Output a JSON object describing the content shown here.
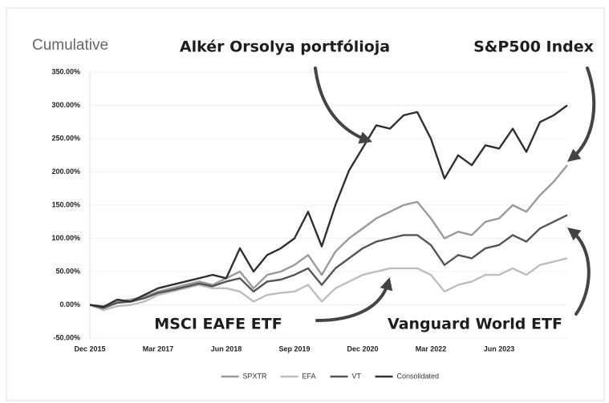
{
  "chart_data": {
    "type": "line",
    "title": "Cumulative",
    "categories": [
      "Dec 2015",
      null,
      null,
      null,
      null,
      "Mar 2017",
      null,
      null,
      null,
      null,
      "Jun 2018",
      null,
      null,
      null,
      null,
      "Sep 2019",
      null,
      null,
      null,
      null,
      "Dec 2020",
      null,
      null,
      null,
      null,
      "Mar 2022",
      null,
      null,
      null,
      null,
      "Jun 2023",
      null,
      null,
      null,
      null,
      null
    ],
    "series": [
      {
        "name": "SPXTR",
        "color": "#9a9a9a",
        "values": [
          0,
          -2,
          5,
          8,
          12,
          20,
          25,
          30,
          35,
          30,
          40,
          50,
          25,
          45,
          50,
          60,
          75,
          45,
          80,
          100,
          115,
          130,
          140,
          150,
          155,
          130,
          100,
          110,
          105,
          125,
          130,
          150,
          140,
          165,
          185,
          210
        ]
      },
      {
        "name": "EFA",
        "color": "#bdbdbd",
        "values": [
          0,
          -8,
          -2,
          0,
          5,
          15,
          20,
          25,
          30,
          25,
          25,
          20,
          5,
          15,
          18,
          20,
          30,
          5,
          25,
          35,
          45,
          50,
          55,
          55,
          55,
          45,
          20,
          30,
          35,
          45,
          45,
          55,
          45,
          60,
          65,
          70
        ]
      },
      {
        "name": "VT",
        "color": "#555555",
        "values": [
          0,
          -5,
          3,
          5,
          10,
          18,
          22,
          27,
          32,
          28,
          35,
          40,
          20,
          35,
          38,
          45,
          55,
          30,
          55,
          70,
          85,
          95,
          100,
          105,
          105,
          90,
          60,
          75,
          70,
          85,
          90,
          105,
          95,
          115,
          125,
          135
        ]
      },
      {
        "name": "Consolidated",
        "color": "#303030",
        "values": [
          0,
          -3,
          8,
          5,
          15,
          25,
          30,
          35,
          40,
          45,
          40,
          85,
          50,
          75,
          85,
          100,
          140,
          88,
          150,
          202,
          236,
          270,
          265,
          285,
          290,
          250,
          190,
          225,
          210,
          240,
          235,
          265,
          230,
          275,
          285,
          300
        ]
      }
    ],
    "ylim": [
      -50,
      350
    ],
    "yticks": [
      {
        "value": -50,
        "label": "-50.00%"
      },
      {
        "value": 0,
        "label": "0.00%"
      },
      {
        "value": 50,
        "label": "50.00%"
      },
      {
        "value": 100,
        "label": "100.00%"
      },
      {
        "value": 150,
        "label": "150.00%"
      },
      {
        "value": 200,
        "label": "200.00%"
      },
      {
        "value": 250,
        "label": "250.00%"
      },
      {
        "value": 300,
        "label": "300.00%"
      },
      {
        "value": 350,
        "label": "350.00%"
      }
    ],
    "grid": true,
    "legend": "bottom",
    "annotations": [
      "Alkér Orsolya portfólioja",
      "S&P500 Index",
      "MSCI EAFE ETF",
      "Vanguard World ETF"
    ]
  }
}
